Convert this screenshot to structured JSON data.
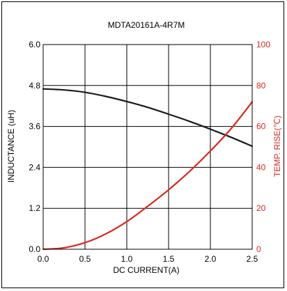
{
  "chart_data": {
    "type": "line",
    "title": "MDTA20161A-4R7M",
    "xlabel": "DC CURRENT(A)",
    "ylabel_left": "INDUCTANCE (uH)",
    "ylabel_right": "TEMP. RISE(℃)",
    "xlim": [
      0,
      2.5
    ],
    "ylim_left": [
      0,
      6.0
    ],
    "ylim_right": [
      0,
      100
    ],
    "x_ticks": [
      "0.0",
      "0.5",
      "1.0",
      "1.5",
      "2.0",
      "2.5"
    ],
    "y_left_ticks": [
      "0.0",
      "1.2",
      "2.4",
      "3.6",
      "4.8",
      "6.0"
    ],
    "y_right_ticks": [
      "0",
      "20",
      "40",
      "60",
      "80",
      "100"
    ],
    "grid": true,
    "series": [
      {
        "name": "",
        "axis": "left",
        "color": "#1a1a1a",
        "x": [
          0.0,
          0.25,
          0.5,
          0.75,
          1.0,
          1.25,
          1.5,
          1.75,
          2.0,
          2.25,
          2.5
        ],
        "y": [
          4.7,
          4.67,
          4.6,
          4.48,
          4.33,
          4.16,
          3.96,
          3.75,
          3.52,
          3.28,
          3.02
        ]
      },
      {
        "name": "",
        "axis": "right",
        "color": "#d8281f",
        "x": [
          0.0,
          0.25,
          0.5,
          0.75,
          1.0,
          1.25,
          1.5,
          1.75,
          2.0,
          2.25,
          2.5
        ],
        "y": [
          0,
          0.7,
          3.2,
          7.5,
          13.5,
          21,
          29,
          38,
          48,
          59,
          72
        ]
      }
    ]
  }
}
